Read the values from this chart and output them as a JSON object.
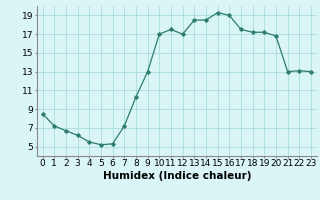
{
  "x": [
    0,
    1,
    2,
    3,
    4,
    5,
    6,
    7,
    8,
    9,
    10,
    11,
    12,
    13,
    14,
    15,
    16,
    17,
    18,
    19,
    20,
    21,
    22,
    23
  ],
  "y": [
    8.5,
    7.2,
    6.7,
    6.2,
    5.5,
    5.2,
    5.3,
    7.2,
    10.3,
    13.0,
    17.0,
    17.5,
    17.0,
    18.5,
    18.5,
    19.3,
    19.0,
    17.5,
    17.2,
    17.2,
    16.8,
    13.0,
    13.1,
    13.0
  ],
  "xlim": [
    -0.5,
    23.5
  ],
  "ylim": [
    4,
    20
  ],
  "yticks": [
    5,
    7,
    9,
    11,
    13,
    15,
    17,
    19
  ],
  "xticks": [
    0,
    1,
    2,
    3,
    4,
    5,
    6,
    7,
    8,
    9,
    10,
    11,
    12,
    13,
    14,
    15,
    16,
    17,
    18,
    19,
    20,
    21,
    22,
    23
  ],
  "xlabel": "Humidex (Indice chaleur)",
  "line_color": "#2e7d6e",
  "marker": "D",
  "bg_color": "#d9f5f5",
  "grid_color": "#aadddd",
  "xlabel_fontsize": 7.5,
  "tick_fontsize": 6.5
}
